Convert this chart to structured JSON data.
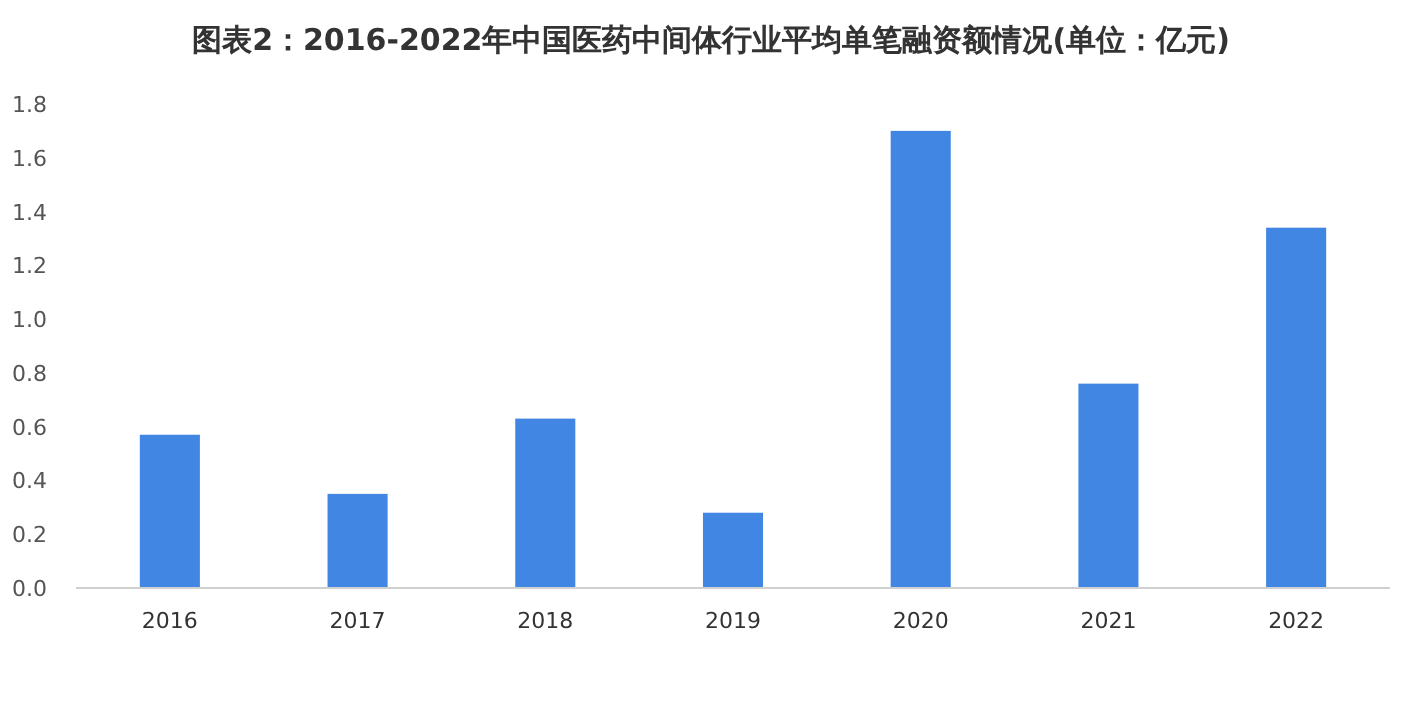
{
  "chart_data": {
    "type": "bar",
    "title": "图表2：2016-2022年中国医药中间体行业平均单笔融资额情况(单位：亿元)",
    "categories": [
      "2016",
      "2017",
      "2018",
      "2019",
      "2020",
      "2021",
      "2022"
    ],
    "values": [
      0.57,
      0.35,
      0.63,
      0.28,
      1.7,
      0.76,
      1.34
    ],
    "color": "#4186e2",
    "ylim": [
      0,
      1.8
    ],
    "yticks": [
      {
        "value": 0,
        "label": "0.0"
      },
      {
        "value": 0.2,
        "label": "0.2"
      },
      {
        "value": 0.4,
        "label": "0.4"
      },
      {
        "value": 0.6,
        "label": "0.6"
      },
      {
        "value": 0.8,
        "label": "0.8"
      },
      {
        "value": 1,
        "label": "1.0"
      },
      {
        "value": 1.2,
        "label": "1.2"
      },
      {
        "value": 1.4,
        "label": "1.4"
      },
      {
        "value": 1.6,
        "label": "1.6"
      },
      {
        "value": 1.8,
        "label": "1.8"
      }
    ],
    "grid": false,
    "legend": false
  }
}
